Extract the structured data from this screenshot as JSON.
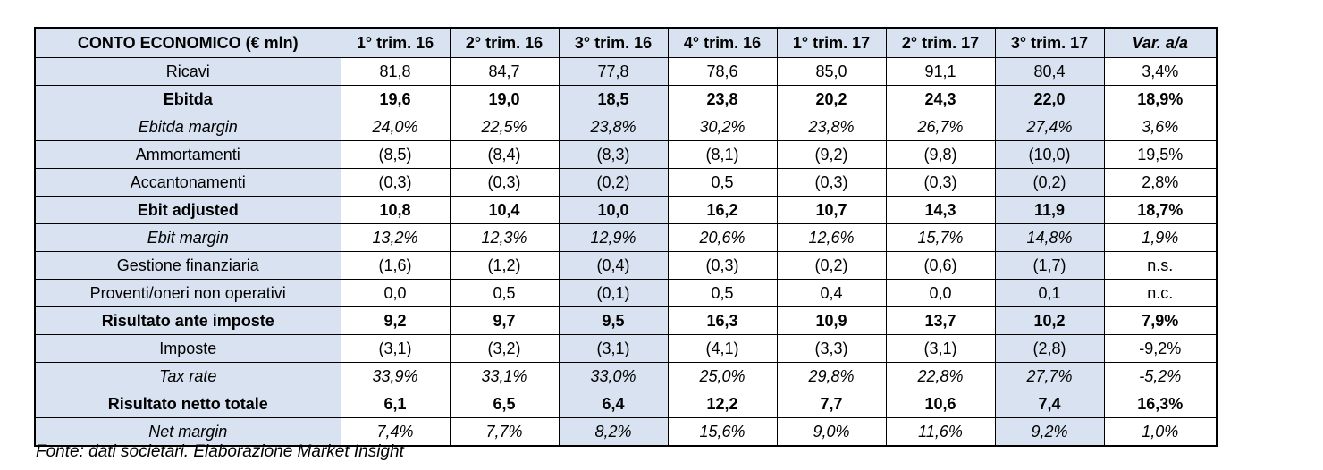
{
  "table": {
    "title_header": "CONTO ECONOMICO (€ mln)",
    "columns": [
      "1° trim. 16",
      "2° trim. 16",
      "3° trim. 16",
      "4° trim. 16",
      "1° trim. 17",
      "2° trim. 17",
      "3° trim. 17",
      "Var. a/a"
    ],
    "shaded_value_columns": [
      2,
      6
    ],
    "rows": [
      {
        "label": "Ricavi",
        "style": "normal",
        "values": [
          "81,8",
          "84,7",
          "77,8",
          "78,6",
          "85,0",
          "91,1",
          "80,4",
          "3,4%"
        ]
      },
      {
        "label": "Ebitda",
        "style": "bold",
        "values": [
          "19,6",
          "19,0",
          "18,5",
          "23,8",
          "20,2",
          "24,3",
          "22,0",
          "18,9%"
        ]
      },
      {
        "label": "Ebitda margin",
        "style": "italic",
        "values": [
          "24,0%",
          "22,5%",
          "23,8%",
          "30,2%",
          "23,8%",
          "26,7%",
          "27,4%",
          "3,6%"
        ]
      },
      {
        "label": "Ammortamenti",
        "style": "normal",
        "values": [
          "(8,5)",
          "(8,4)",
          "(8,3)",
          "(8,1)",
          "(9,2)",
          "(9,8)",
          "(10,0)",
          "19,5%"
        ]
      },
      {
        "label": "Accantonamenti",
        "style": "normal",
        "values": [
          "(0,3)",
          "(0,3)",
          "(0,2)",
          "0,5",
          "(0,3)",
          "(0,3)",
          "(0,2)",
          "2,8%"
        ]
      },
      {
        "label": "Ebit adjusted",
        "style": "bold",
        "values": [
          "10,8",
          "10,4",
          "10,0",
          "16,2",
          "10,7",
          "14,3",
          "11,9",
          "18,7%"
        ]
      },
      {
        "label": "Ebit margin",
        "style": "italic",
        "values": [
          "13,2%",
          "12,3%",
          "12,9%",
          "20,6%",
          "12,6%",
          "15,7%",
          "14,8%",
          "1,9%"
        ]
      },
      {
        "label": "Gestione finanziaria",
        "style": "normal",
        "values": [
          "(1,6)",
          "(1,2)",
          "(0,4)",
          "(0,3)",
          "(0,2)",
          "(0,6)",
          "(1,7)",
          "n.s."
        ]
      },
      {
        "label": "Proventi/oneri non operativi",
        "style": "normal",
        "values": [
          "0,0",
          "0,5",
          "(0,1)",
          "0,5",
          "0,4",
          "0,0",
          "0,1",
          "n.c."
        ]
      },
      {
        "label": "Risultato ante imposte",
        "style": "bold",
        "values": [
          "9,2",
          "9,7",
          "9,5",
          "16,3",
          "10,9",
          "13,7",
          "10,2",
          "7,9%"
        ]
      },
      {
        "label": "Imposte",
        "style": "normal",
        "values": [
          "(3,1)",
          "(3,2)",
          "(3,1)",
          "(4,1)",
          "(3,3)",
          "(3,1)",
          "(2,8)",
          "-9,2%"
        ]
      },
      {
        "label": "Tax rate",
        "style": "italic",
        "values": [
          "33,9%",
          "33,1%",
          "33,0%",
          "25,0%",
          "29,8%",
          "22,8%",
          "27,7%",
          "-5,2%"
        ]
      },
      {
        "label": "Risultato netto totale",
        "style": "bold",
        "values": [
          "6,1",
          "6,5",
          "6,4",
          "12,2",
          "7,7",
          "10,6",
          "7,4",
          "16,3%"
        ]
      },
      {
        "label": "Net margin",
        "style": "italic",
        "values": [
          "7,4%",
          "7,7%",
          "8,2%",
          "15,6%",
          "9,0%",
          "11,6%",
          "9,2%",
          "1,0%"
        ]
      }
    ]
  },
  "footer": "Fonte: dati societari. Elaborazione Market Insight",
  "colors": {
    "shading_blue": "#D9E2F0",
    "border": "#000000",
    "text": "#000000",
    "background": "#FFFFFF"
  },
  "chart_data": {
    "type": "table",
    "title": "CONTO ECONOMICO (€ mln)",
    "columns": [
      "CONTO ECONOMICO (€ mln)",
      "1° trim. 16",
      "2° trim. 16",
      "3° trim. 16",
      "4° trim. 16",
      "1° trim. 17",
      "2° trim. 17",
      "3° trim. 17",
      "Var. a/a"
    ],
    "rows": [
      [
        "Ricavi",
        "81,8",
        "84,7",
        "77,8",
        "78,6",
        "85,0",
        "91,1",
        "80,4",
        "3,4%"
      ],
      [
        "Ebitda",
        "19,6",
        "19,0",
        "18,5",
        "23,8",
        "20,2",
        "24,3",
        "22,0",
        "18,9%"
      ],
      [
        "Ebitda margin",
        "24,0%",
        "22,5%",
        "23,8%",
        "30,2%",
        "23,8%",
        "26,7%",
        "27,4%",
        "3,6%"
      ],
      [
        "Ammortamenti",
        "(8,5)",
        "(8,4)",
        "(8,3)",
        "(8,1)",
        "(9,2)",
        "(9,8)",
        "(10,0)",
        "19,5%"
      ],
      [
        "Accantonamenti",
        "(0,3)",
        "(0,3)",
        "(0,2)",
        "0,5",
        "(0,3)",
        "(0,3)",
        "(0,2)",
        "2,8%"
      ],
      [
        "Ebit adjusted",
        "10,8",
        "10,4",
        "10,0",
        "16,2",
        "10,7",
        "14,3",
        "11,9",
        "18,7%"
      ],
      [
        "Ebit margin",
        "13,2%",
        "12,3%",
        "12,9%",
        "20,6%",
        "12,6%",
        "15,7%",
        "14,8%",
        "1,9%"
      ],
      [
        "Gestione finanziaria",
        "(1,6)",
        "(1,2)",
        "(0,4)",
        "(0,3)",
        "(0,2)",
        "(0,6)",
        "(1,7)",
        "n.s."
      ],
      [
        "Proventi/oneri non operativi",
        "0,0",
        "0,5",
        "(0,1)",
        "0,5",
        "0,4",
        "0,0",
        "0,1",
        "n.c."
      ],
      [
        "Risultato ante imposte",
        "9,2",
        "9,7",
        "9,5",
        "16,3",
        "10,9",
        "13,7",
        "10,2",
        "7,9%"
      ],
      [
        "Imposte",
        "(3,1)",
        "(3,2)",
        "(3,1)",
        "(4,1)",
        "(3,3)",
        "(3,1)",
        "(2,8)",
        "-9,2%"
      ],
      [
        "Tax rate",
        "33,9%",
        "33,1%",
        "33,0%",
        "25,0%",
        "29,8%",
        "22,8%",
        "27,7%",
        "-5,2%"
      ],
      [
        "Risultato netto totale",
        "6,1",
        "6,5",
        "6,4",
        "12,2",
        "7,7",
        "10,6",
        "7,4",
        "16,3%"
      ],
      [
        "Net margin",
        "7,4%",
        "7,7%",
        "8,2%",
        "15,6%",
        "9,0%",
        "11,6%",
        "9,2%",
        "1,0%"
      ]
    ],
    "notes": "Quarterly income statement in € mln; values in parentheses are negative; source note: Fonte: dati societari. Elaborazione Market Insight"
  }
}
